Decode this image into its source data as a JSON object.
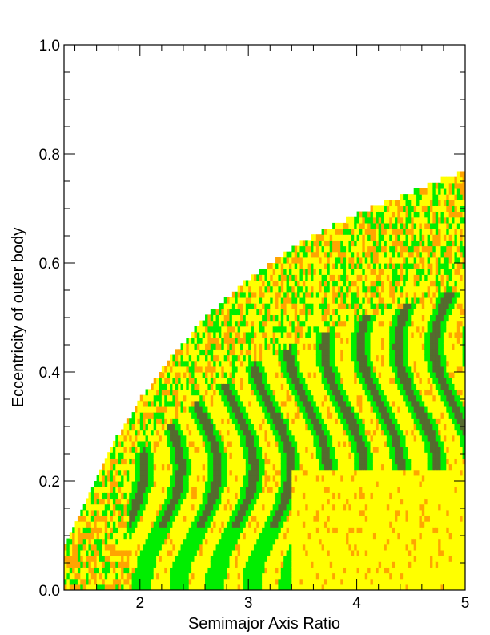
{
  "chart_data": {
    "type": "heatmap",
    "title": "",
    "xlabel": "Semimajor Axis Ratio",
    "ylabel": "Eccentricity of outer body",
    "xlim": [
      1.3,
      5.0
    ],
    "ylim": [
      0.0,
      1.0
    ],
    "x_ticks": [
      2,
      3,
      4,
      5
    ],
    "x_tick_labels": [
      "2",
      "3",
      "4",
      "5"
    ],
    "y_ticks": [
      0.0,
      0.2,
      0.4,
      0.6,
      0.8,
      1.0
    ],
    "y_tick_labels": [
      "0.0",
      "0.2",
      "0.4",
      "0.6",
      "0.8",
      "1.0"
    ],
    "grid": false,
    "legend": "none",
    "colors": {
      "yellow": "#ffff00",
      "orange": "#ffa500",
      "green": "#00ee00",
      "dark": "#556b2f"
    },
    "boundary_curve": {
      "x": [
        1.3,
        1.5,
        1.7,
        2.0,
        2.3,
        2.6,
        3.0,
        3.5,
        4.0,
        4.5,
        5.0
      ],
      "y": [
        0.08,
        0.16,
        0.25,
        0.35,
        0.43,
        0.5,
        0.57,
        0.64,
        0.69,
        0.73,
        0.77
      ]
    }
  }
}
